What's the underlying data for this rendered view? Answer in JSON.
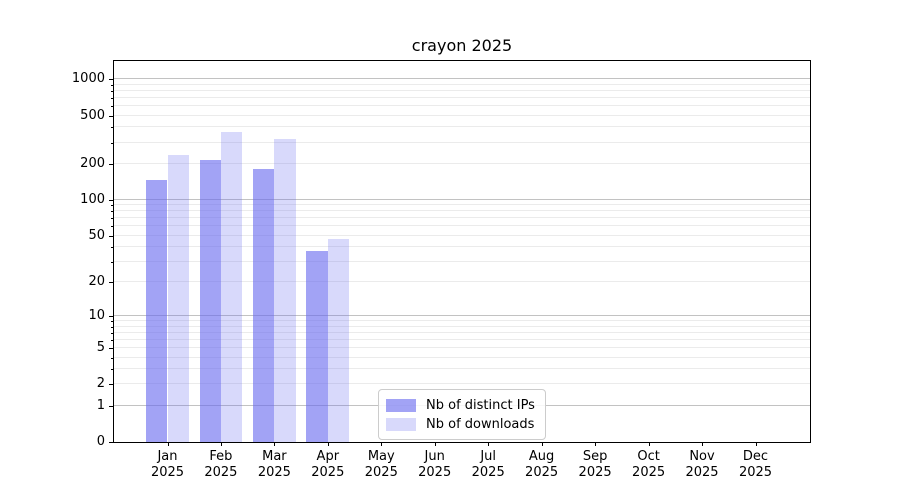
{
  "figure": {
    "background": "#ffffff"
  },
  "chart_data": {
    "type": "bar",
    "title": "crayon 2025",
    "xlabel": "",
    "ylabel": "",
    "y_scale": "log1p",
    "ylim": [
      0,
      1420
    ],
    "grid": true,
    "legend_position": "bottom-center",
    "categories": [
      "Jan",
      "Feb",
      "Mar",
      "Apr",
      "May",
      "Jun",
      "Jul",
      "Aug",
      "Sep",
      "Oct",
      "Nov",
      "Dec"
    ],
    "x_sublabel": "2025",
    "y_labeled_ticks": [
      0,
      1,
      2,
      5,
      10,
      20,
      50,
      100,
      200,
      500,
      1000
    ],
    "y_major_gridlines": [
      1,
      10,
      100,
      1000
    ],
    "y_minor_gridlines": [
      2,
      3,
      4,
      5,
      6,
      7,
      8,
      9,
      20,
      30,
      40,
      50,
      60,
      70,
      80,
      90,
      200,
      300,
      400,
      500,
      600,
      700,
      800,
      900
    ],
    "series": [
      {
        "name": "Nb of distinct IPs",
        "color": "rgba(100,102,238,0.60)",
        "values": [
          145,
          215,
          182,
          37,
          null,
          null,
          null,
          null,
          null,
          null,
          null,
          null
        ]
      },
      {
        "name": "Nb of downloads",
        "color": "rgba(100,102,238,0.25)",
        "values": [
          235,
          370,
          318,
          47,
          null,
          null,
          null,
          null,
          null,
          null,
          null,
          null
        ]
      }
    ]
  },
  "colors": {
    "major_grid": "#c2c2c2",
    "minor_grid": "#ebebeb",
    "spine": "#000000",
    "text": "#000000"
  }
}
